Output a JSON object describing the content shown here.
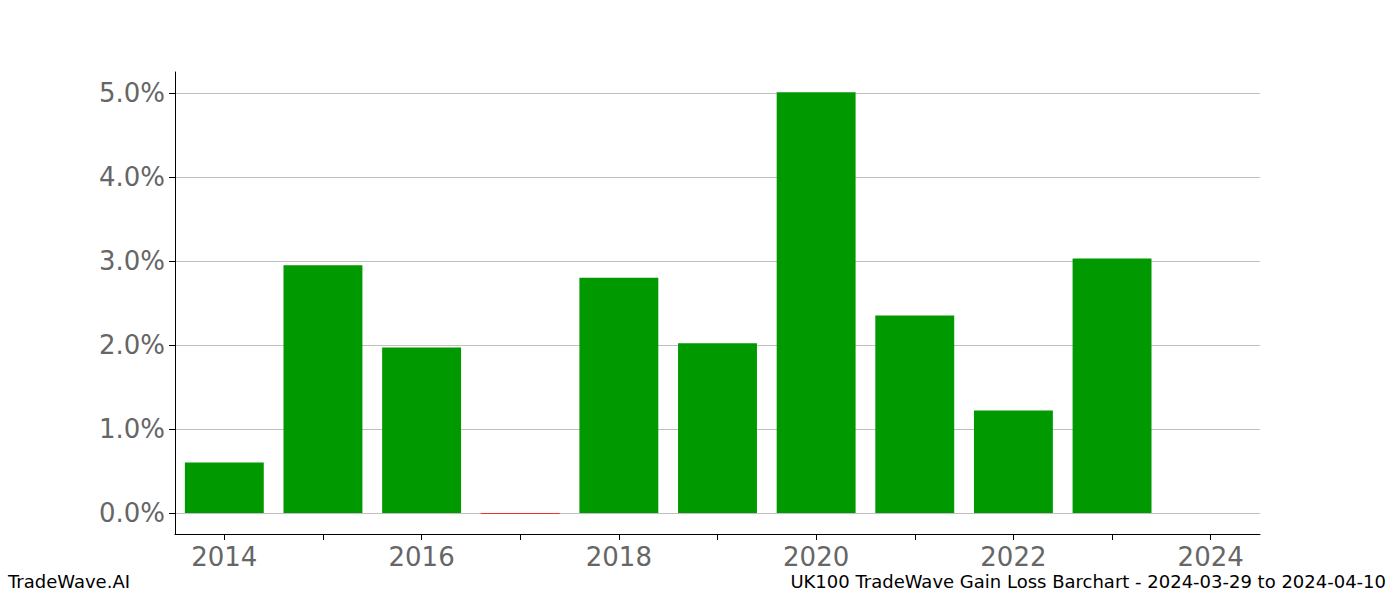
{
  "chart_data": {
    "type": "bar",
    "annotations": [
      "TradeWave.AI",
      "UK100 TradeWave Gain Loss Barchart - 2024-03-29 to 2024-04-10"
    ],
    "categories": [
      "2014",
      null,
      "2016",
      null,
      "2018",
      null,
      "2020",
      null,
      "2022",
      null,
      "2024"
    ],
    "values": [
      0.6,
      2.95,
      1.97,
      -0.01,
      2.8,
      2.02,
      5.01,
      2.35,
      1.22,
      3.03,
      null
    ],
    "colors": [
      "#009900",
      "#009900",
      "#009900",
      "#ff0000",
      "#009900",
      "#009900",
      "#009900",
      "#009900",
      "#009900",
      "#009900",
      "#009900"
    ],
    "ylim": [
      -0.25,
      5.25
    ],
    "yticks": [
      {
        "value": 0,
        "label": "0.0%"
      },
      {
        "value": 1,
        "label": "1.0%"
      },
      {
        "value": 2,
        "label": "2.0%"
      },
      {
        "value": 3,
        "label": "3.0%"
      },
      {
        "value": 4,
        "label": "4.0%"
      },
      {
        "value": 5,
        "label": "5.0%"
      }
    ],
    "grid": true
  }
}
